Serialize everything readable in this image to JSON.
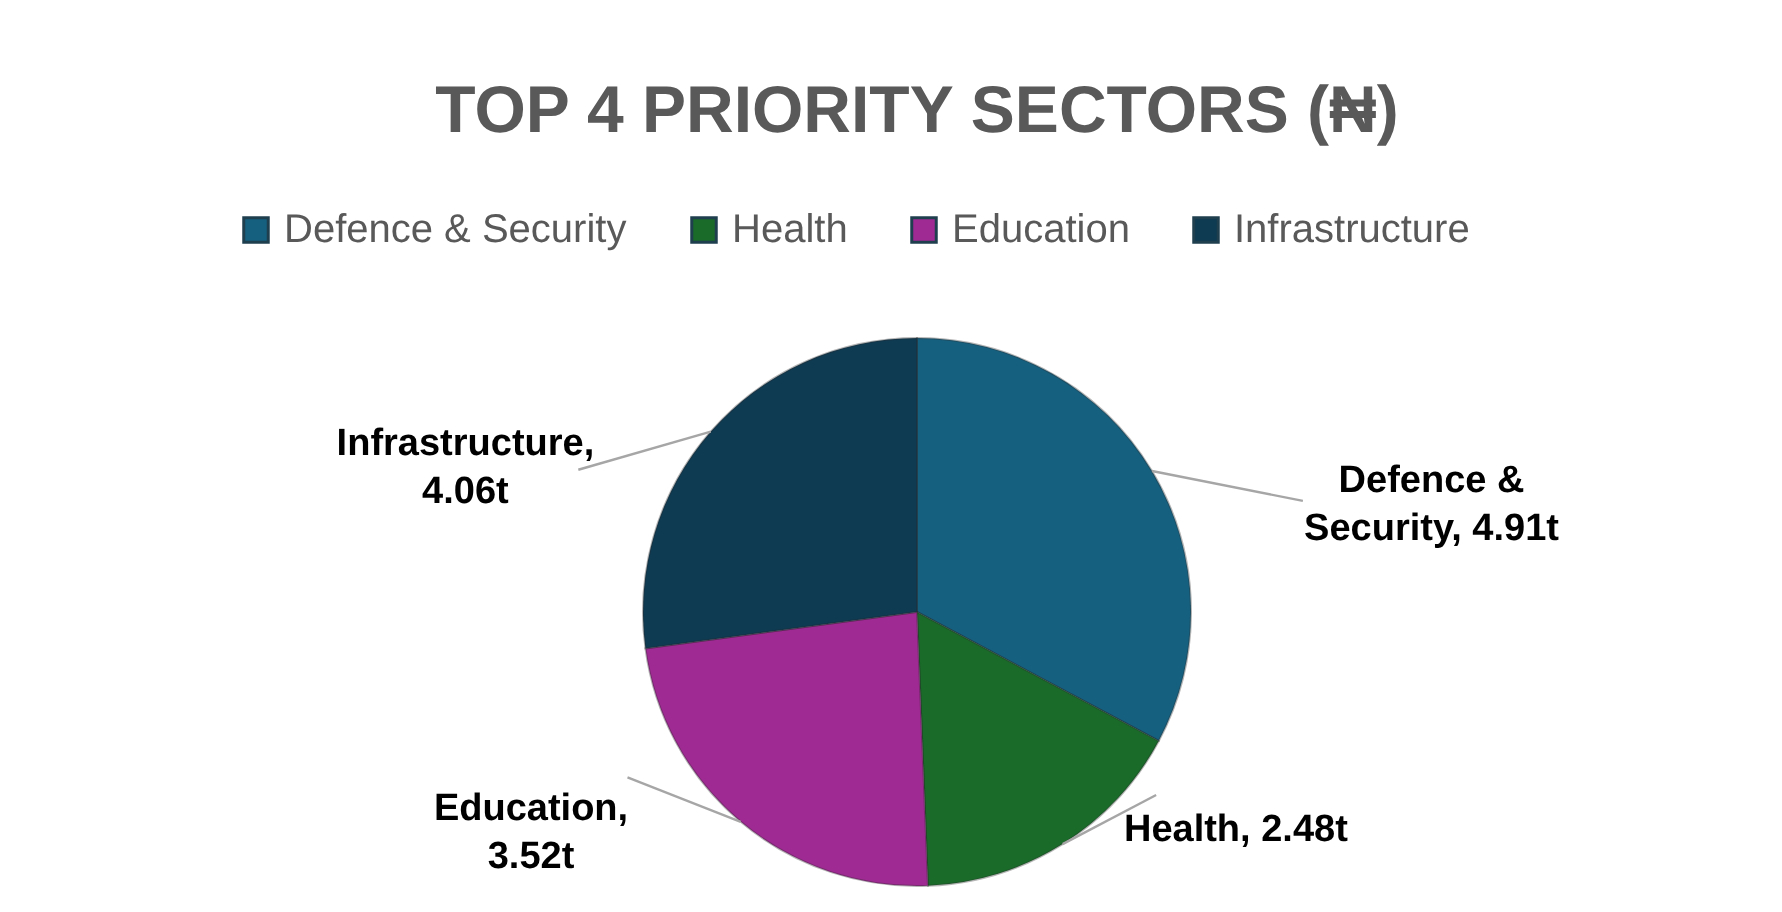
{
  "chart_data": {
    "type": "pie",
    "title": "TOP 4 PRIORITY SECTORS (₦)",
    "categories": [
      "Defence & Security",
      "Health",
      "Education",
      "Infrastructure"
    ],
    "values": [
      4.91,
      2.48,
      3.52,
      4.06
    ],
    "colors": [
      "#16607f",
      "#1a6b2a",
      "#a02a93",
      "#0e3a52"
    ],
    "value_labels": [
      "Defence & Security, 4.91t",
      "Health, 2.48t",
      "Education, 3.52t",
      "Infrastructure, 4.06t"
    ],
    "legend": "top"
  }
}
